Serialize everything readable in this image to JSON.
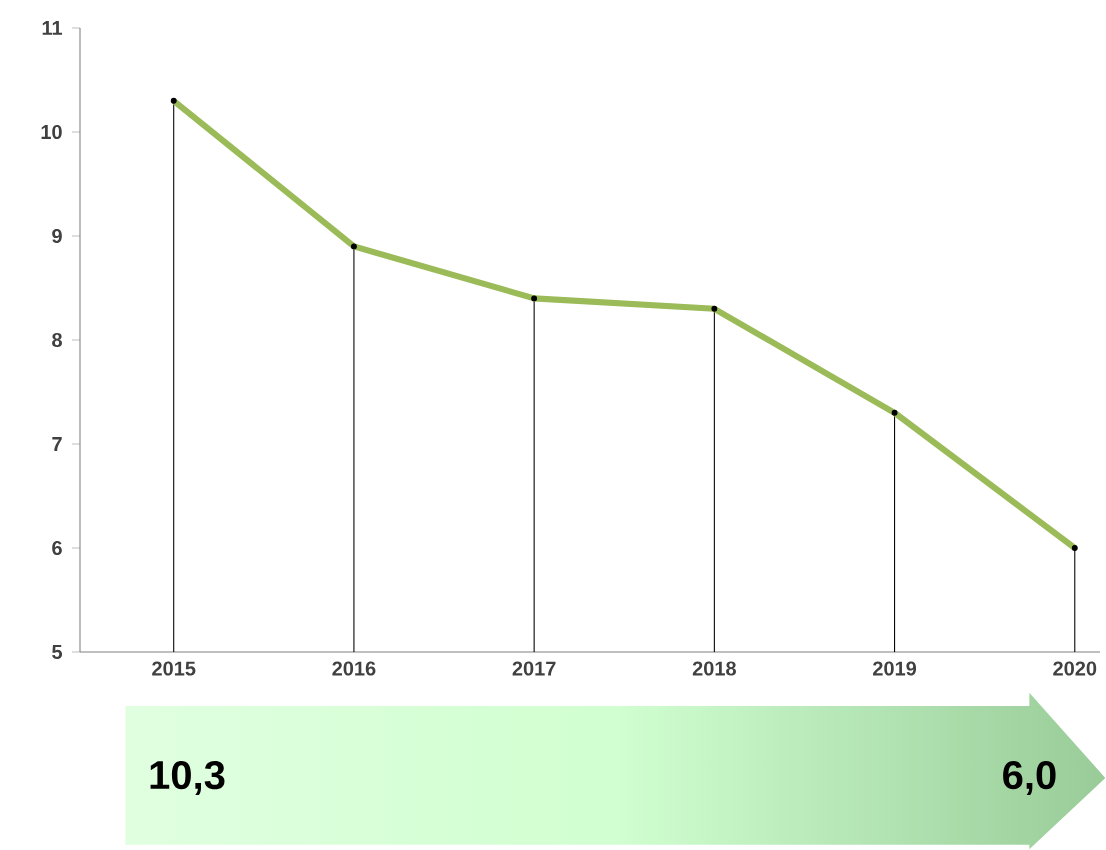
{
  "chart_data": {
    "type": "line",
    "categories": [
      "2015",
      "2016",
      "2017",
      "2018",
      "2019",
      "2020"
    ],
    "series": [
      {
        "type": "lollipop",
        "color": "#000000",
        "values": [
          10.3,
          8.9,
          8.4,
          8.3,
          7.3,
          6.0
        ]
      },
      {
        "color": "#9bbb59",
        "values": [
          10.3,
          8.9,
          8.4,
          8.3,
          7.3,
          6.0
        ]
      }
    ],
    "ylim": [
      5,
      11
    ],
    "yticks": [
      5,
      6,
      7,
      8,
      9,
      10,
      11
    ],
    "marker": "none",
    "line_style": "solid",
    "annotations": [
      "10,3",
      "6,0"
    ]
  }
}
